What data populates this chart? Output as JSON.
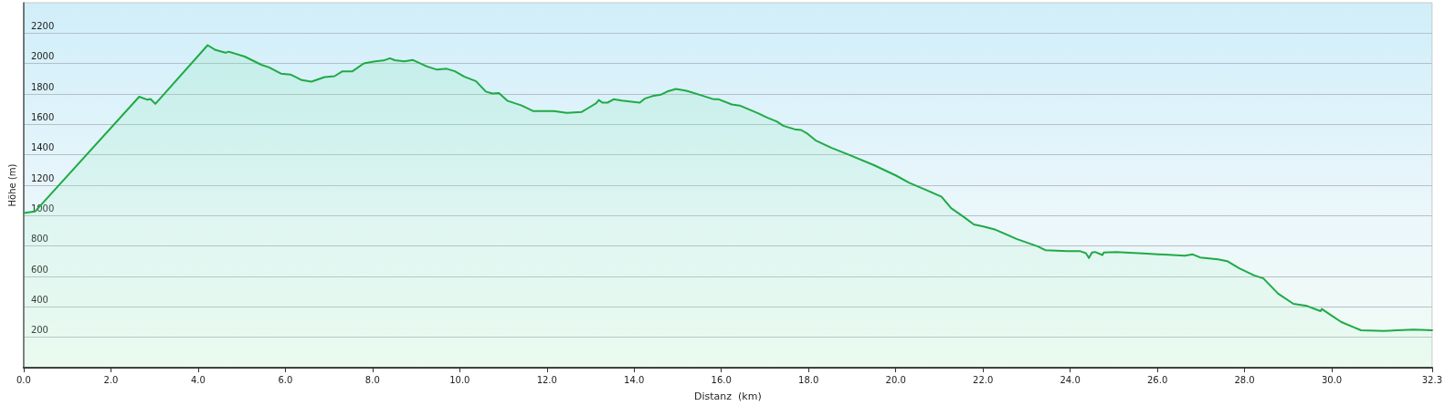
{
  "chart_data": {
    "type": "area",
    "xlabel": "Distanz  (km)",
    "ylabel": "Höhe (m)",
    "xlim": [
      0,
      32.3
    ],
    "ylim": [
      0,
      2400
    ],
    "xticks": [
      {
        "value": 0,
        "label": "0.0"
      },
      {
        "value": 2,
        "label": "2.0"
      },
      {
        "value": 4,
        "label": "4.0"
      },
      {
        "value": 6,
        "label": "6.0"
      },
      {
        "value": 8,
        "label": "8.0"
      },
      {
        "value": 10,
        "label": "10.0"
      },
      {
        "value": 12,
        "label": "12.0"
      },
      {
        "value": 14,
        "label": "14.0"
      },
      {
        "value": 16,
        "label": "16.0"
      },
      {
        "value": 18,
        "label": "18.0"
      },
      {
        "value": 20,
        "label": "20.0"
      },
      {
        "value": 22,
        "label": "22.0"
      },
      {
        "value": 24,
        "label": "24.0"
      },
      {
        "value": 26,
        "label": "26.0"
      },
      {
        "value": 28,
        "label": "28.0"
      },
      {
        "value": 30,
        "label": "30.0"
      },
      32.3
    ],
    "yticks": [
      200,
      400,
      600,
      800,
      1000,
      1200,
      1400,
      1600,
      1800,
      2000,
      2200
    ],
    "grid": "y",
    "marker": "none",
    "line_style": "solid",
    "series": [
      {
        "color": "#1faa46",
        "x": [
          0,
          0.26,
          2.65,
          2.84,
          2.91,
          3.02,
          4.22,
          4.4,
          4.63,
          4.7,
          5.07,
          5.45,
          5.63,
          5.9,
          6.12,
          6.38,
          6.6,
          6.9,
          7.13,
          7.31,
          7.54,
          7.8,
          8.06,
          8.25,
          8.4,
          8.51,
          8.73,
          8.92,
          9.25,
          9.48,
          9.7,
          9.89,
          10.11,
          10.37,
          10.6,
          10.75,
          10.9,
          11.09,
          11.42,
          11.68,
          12.16,
          12.46,
          12.79,
          12.98,
          13.13,
          13.19,
          13.27,
          13.39,
          13.53,
          13.72,
          14.13,
          14.24,
          14.42,
          14.61,
          14.76,
          14.96,
          15.2,
          15.5,
          15.83,
          15.94,
          16.24,
          16.42,
          16.83,
          17.05,
          17.27,
          17.42,
          17.68,
          17.83,
          17.98,
          18.16,
          18.53,
          18.9,
          19.5,
          20.01,
          20.31,
          20.68,
          21.05,
          21.27,
          21.57,
          21.79,
          22.01,
          22.29,
          22.77,
          23.26,
          23.43,
          23.94,
          24.22,
          24.36,
          24.43,
          24.5,
          24.57,
          24.74,
          24.77,
          25.05,
          25.67,
          26.63,
          26.81,
          26.98,
          27.39,
          27.6,
          27.88,
          28.22,
          28.43,
          28.77,
          29.12,
          29.43,
          29.74,
          29.77,
          30.01,
          30.22,
          30.5,
          30.67,
          31.19,
          31.88,
          32.3
        ],
        "values": [
          1017,
          1027,
          1782,
          1762,
          1767,
          1735,
          2121,
          2089,
          2071,
          2078,
          2046,
          1992,
          1975,
          1934,
          1928,
          1891,
          1881,
          1911,
          1917,
          1949,
          1949,
          2001,
          2014,
          2020,
          2035,
          2022,
          2014,
          2024,
          1981,
          1960,
          1966,
          1949,
          1913,
          1885,
          1816,
          1803,
          1806,
          1756,
          1724,
          1688,
          1688,
          1675,
          1681,
          1713,
          1739,
          1760,
          1743,
          1743,
          1765,
          1756,
          1743,
          1769,
          1786,
          1795,
          1816,
          1833,
          1821,
          1795,
          1765,
          1765,
          1731,
          1724,
          1675,
          1645,
          1619,
          1591,
          1568,
          1563,
          1538,
          1495,
          1445,
          1403,
          1332,
          1263,
          1216,
          1171,
          1124,
          1049,
          989,
          942,
          929,
          907,
          847,
          797,
          773,
          767,
          767,
          753,
          721,
          757,
          761,
          741,
          757,
          761,
          751,
          737,
          745,
          725,
          713,
          701,
          653,
          607,
          587,
          487,
          420,
          406,
          372,
          386,
          340,
          300,
          266,
          246,
          242,
          250,
          246
        ]
      }
    ]
  }
}
